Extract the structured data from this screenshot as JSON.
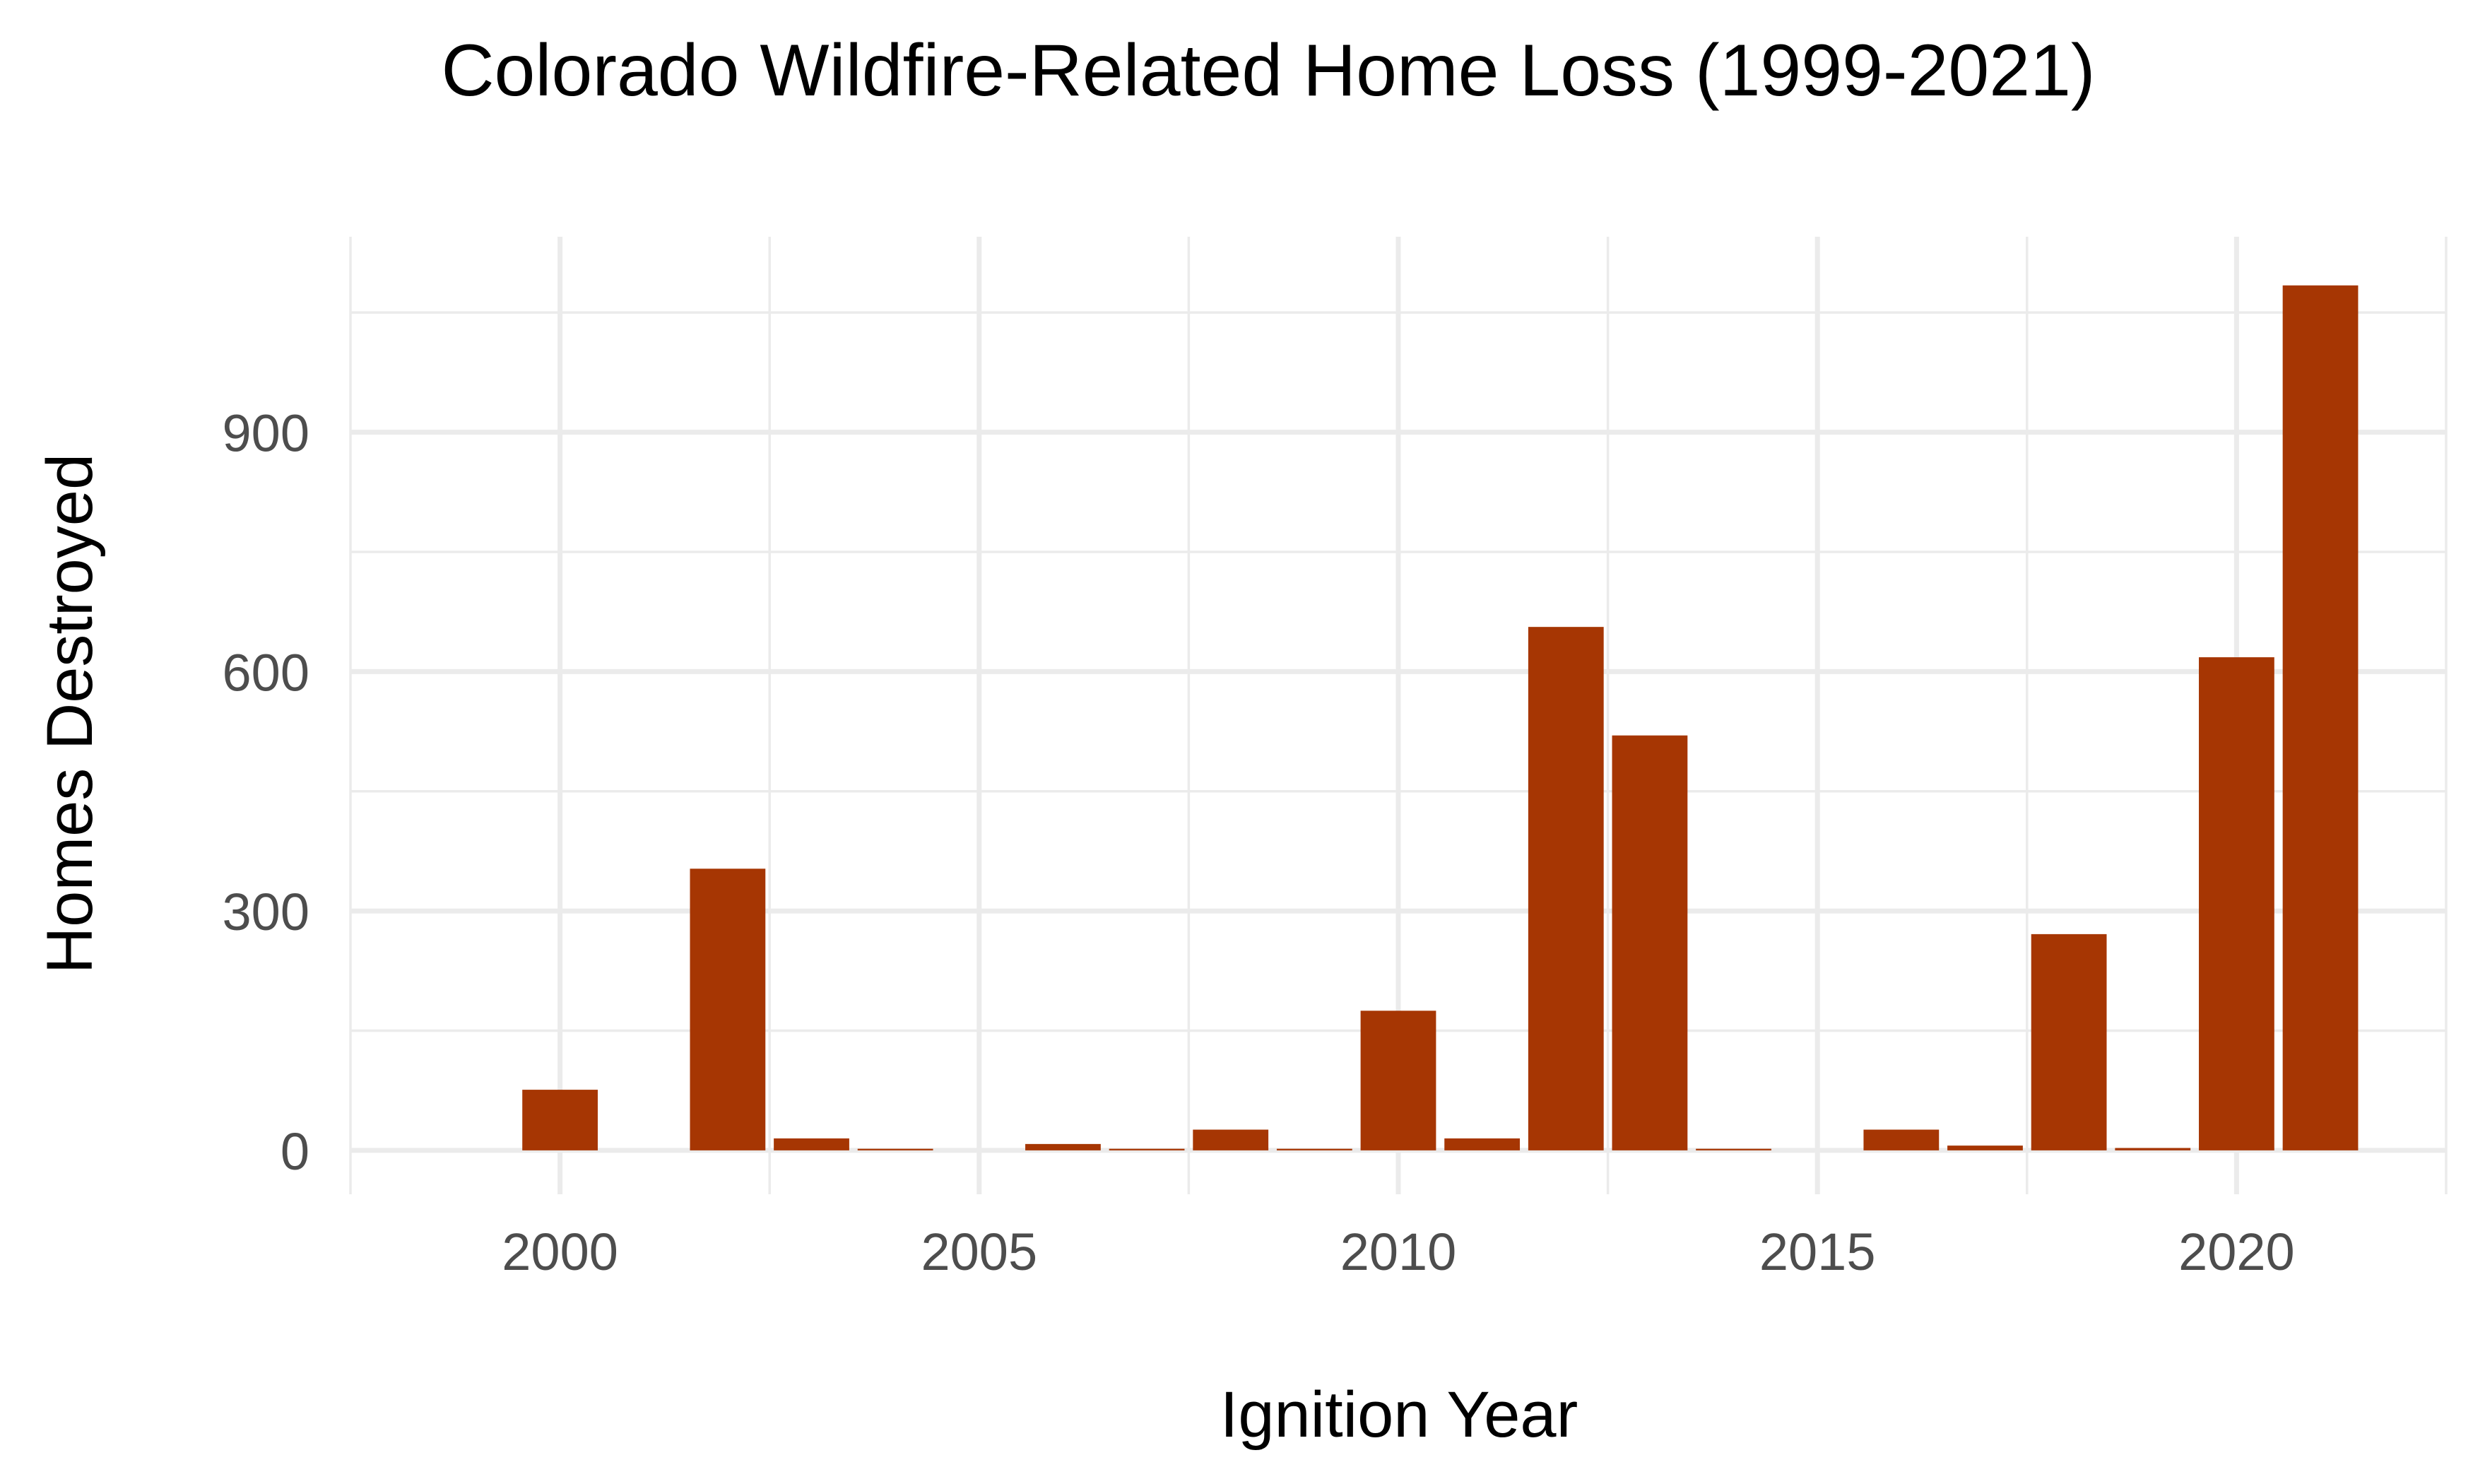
{
  "chart_data": {
    "type": "bar",
    "title": "Colorado Wildfire-Related Home Loss (1999-2021)",
    "xlabel": "Ignition Year",
    "ylabel": "Homes Destroyed",
    "x": [
      1999,
      2000,
      2001,
      2002,
      2003,
      2004,
      2005,
      2006,
      2007,
      2008,
      2009,
      2010,
      2011,
      2012,
      2013,
      2014,
      2015,
      2016,
      2017,
      2018,
      2019,
      2020,
      2021
    ],
    "values": [
      0,
      76,
      0,
      353,
      15,
      2,
      0,
      8,
      2,
      26,
      2,
      175,
      15,
      656,
      520,
      2,
      0,
      26,
      6,
      271,
      3,
      618,
      1084
    ],
    "xlim": [
      1997.5,
      2022.5
    ],
    "ylim": [
      -55,
      1145
    ],
    "x_ticks": [
      2000,
      2005,
      2010,
      2015,
      2020
    ],
    "y_ticks": [
      0,
      300,
      600,
      900
    ],
    "grid": true,
    "bar_color": "#a63603"
  }
}
